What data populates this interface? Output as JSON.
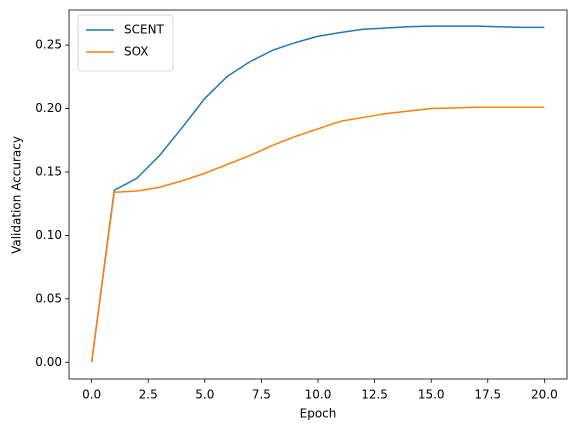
{
  "chart_data": {
    "type": "line",
    "xlabel": "Epoch",
    "ylabel": "Validation Accuracy",
    "x": [
      0,
      1,
      2,
      3,
      4,
      5,
      6,
      7,
      8,
      9,
      10,
      11,
      12,
      13,
      14,
      15,
      16,
      17,
      18,
      19,
      20
    ],
    "series": [
      {
        "name": "SCENT",
        "color": "#1f77b4",
        "values": [
          0,
          0.1356,
          0.145,
          0.163,
          0.185,
          0.208,
          0.2255,
          0.237,
          0.246,
          0.252,
          0.257,
          0.26,
          0.2625,
          0.2635,
          0.2645,
          0.265,
          0.265,
          0.265,
          0.2645,
          0.264,
          0.264
        ]
      },
      {
        "name": "SOX",
        "color": "#ff7f0e",
        "values": [
          0,
          0.134,
          0.135,
          0.138,
          0.143,
          0.149,
          0.156,
          0.163,
          0.171,
          0.178,
          0.184,
          0.19,
          0.193,
          0.196,
          0.198,
          0.2,
          0.2005,
          0.201,
          0.201,
          0.201,
          0.201
        ]
      }
    ],
    "xlim": [
      -1,
      21
    ],
    "xticks": [
      {
        "value": 0,
        "label": "0.0"
      },
      2.5,
      {
        "value": 5,
        "label": "5.0"
      },
      7.5,
      {
        "value": 10,
        "label": "10.0"
      },
      12.5,
      {
        "value": 15,
        "label": "15.0"
      },
      17.5,
      {
        "value": 20,
        "label": "20.0"
      }
    ],
    "ylim": [
      -0.0132,
      0.2777
    ],
    "yticks": [
      {
        "value": 0,
        "label": "0.00"
      },
      0.05,
      {
        "value": 0.1,
        "label": "0.10"
      },
      0.15,
      {
        "value": 0.2,
        "label": "0.20"
      },
      0.25
    ],
    "legend": "upper left",
    "grid": false
  }
}
